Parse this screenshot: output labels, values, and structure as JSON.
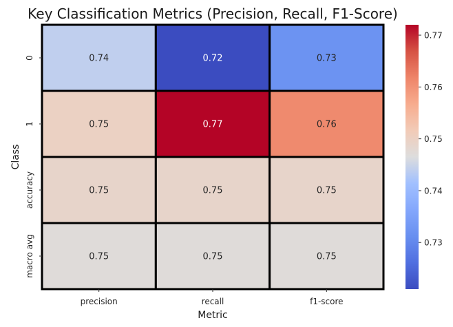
{
  "chart_data": {
    "type": "heatmap",
    "title": "Key Classification Metrics (Precision, Recall, F1-Score)",
    "xlabel": "Metric",
    "ylabel": "Class",
    "x_categories": [
      "precision",
      "recall",
      "f1-score"
    ],
    "y_categories": [
      "0",
      "1",
      "accuracy",
      "macro avg"
    ],
    "values": [
      [
        0.744,
        0.721,
        0.732
      ],
      [
        0.75,
        0.772,
        0.761
      ],
      [
        0.749,
        0.749,
        0.749
      ],
      [
        0.747,
        0.747,
        0.747
      ]
    ],
    "cell_labels": [
      [
        "0.74",
        "0.72",
        "0.73"
      ],
      [
        "0.75",
        "0.77",
        "0.76"
      ],
      [
        "0.75",
        "0.75",
        "0.75"
      ],
      [
        "0.75",
        "0.75",
        "0.75"
      ]
    ],
    "colormap": "coolwarm",
    "vmin": 0.721,
    "vmax": 0.772,
    "colorbar_ticks": [
      "0.73",
      "0.74",
      "0.75",
      "0.76",
      "0.77"
    ],
    "colorbar_tick_values": [
      0.73,
      0.74,
      0.75,
      0.76,
      0.77
    ],
    "cell_border_color": "#000000",
    "grid": false
  }
}
